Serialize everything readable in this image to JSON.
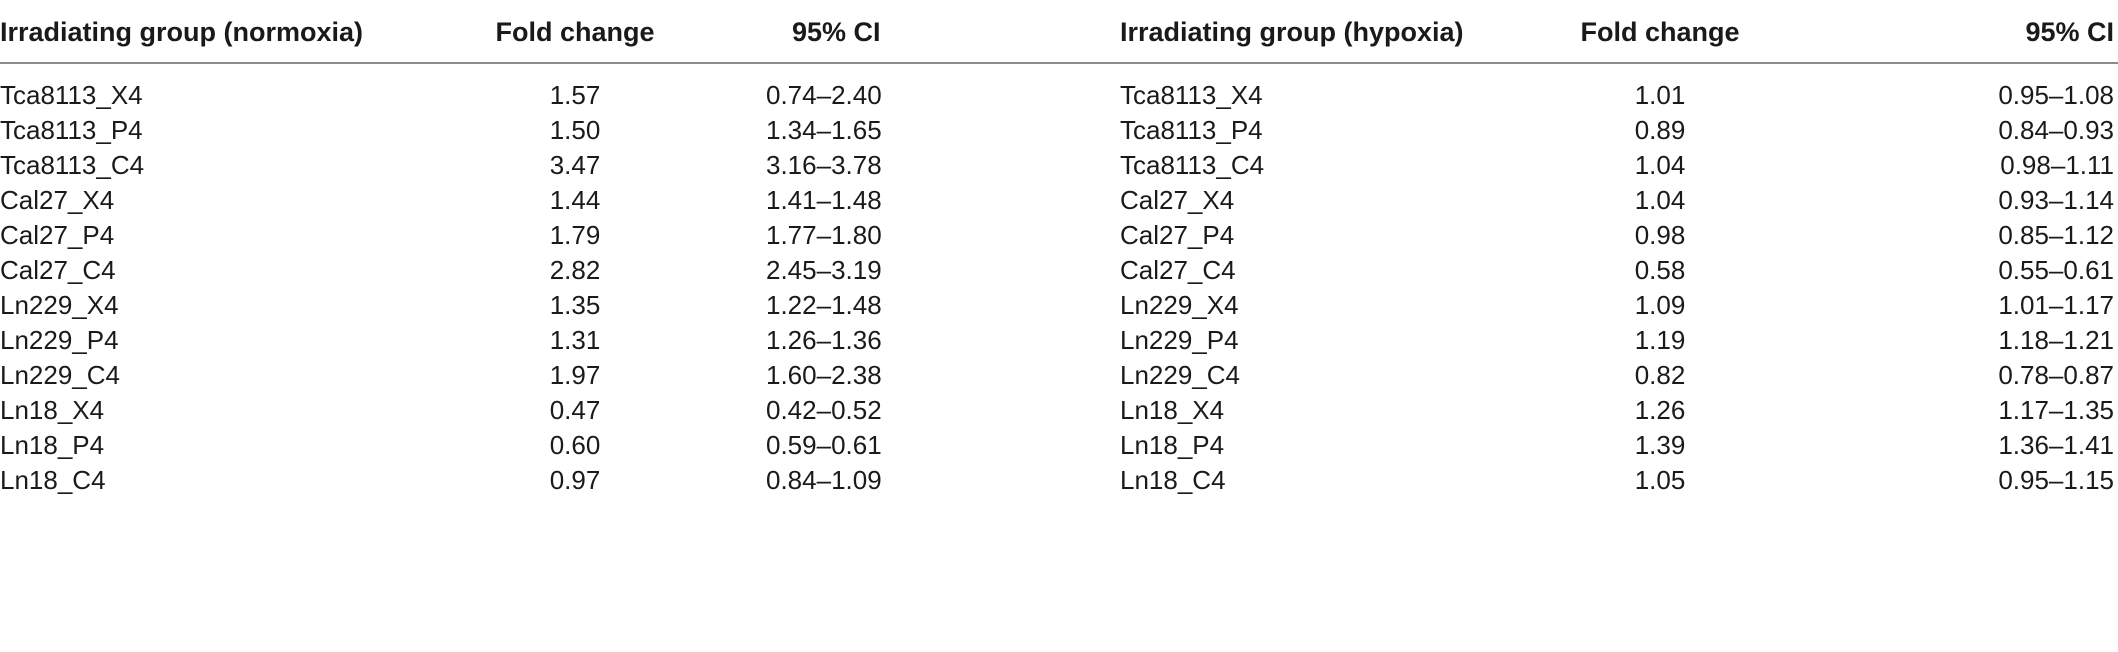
{
  "table": {
    "headers": {
      "normoxia_group": "Irradiating group (normoxia)",
      "normoxia_fold_change": "Fold change",
      "normoxia_ci": "95% CI",
      "hypoxia_group": "Irradiating group (hypoxia)",
      "hypoxia_fold_change": "Fold change",
      "hypoxia_ci": "95% CI"
    },
    "rows": [
      {
        "n_group": "Tca8113_X4",
        "n_fc": "1.57",
        "n_ci": "0.74–2.40",
        "h_group": "Tca8113_X4",
        "h_fc": "1.01",
        "h_ci": "0.95–1.08"
      },
      {
        "n_group": "Tca8113_P4",
        "n_fc": "1.50",
        "n_ci": "1.34–1.65",
        "h_group": "Tca8113_P4",
        "h_fc": "0.89",
        "h_ci": "0.84–0.93"
      },
      {
        "n_group": "Tca8113_C4",
        "n_fc": "3.47",
        "n_ci": "3.16–3.78",
        "h_group": "Tca8113_C4",
        "h_fc": "1.04",
        "h_ci": "0.98–1.11"
      },
      {
        "n_group": "Cal27_X4",
        "n_fc": "1.44",
        "n_ci": "1.41–1.48",
        "h_group": "Cal27_X4",
        "h_fc": "1.04",
        "h_ci": "0.93–1.14"
      },
      {
        "n_group": "Cal27_P4",
        "n_fc": "1.79",
        "n_ci": "1.77–1.80",
        "h_group": "Cal27_P4",
        "h_fc": "0.98",
        "h_ci": "0.85–1.12"
      },
      {
        "n_group": "Cal27_C4",
        "n_fc": "2.82",
        "n_ci": "2.45–3.19",
        "h_group": "Cal27_C4",
        "h_fc": "0.58",
        "h_ci": "0.55–0.61"
      },
      {
        "n_group": "Ln229_X4",
        "n_fc": "1.35",
        "n_ci": "1.22–1.48",
        "h_group": "Ln229_X4",
        "h_fc": "1.09",
        "h_ci": "1.01–1.17"
      },
      {
        "n_group": "Ln229_P4",
        "n_fc": "1.31",
        "n_ci": "1.26–1.36",
        "h_group": "Ln229_P4",
        "h_fc": "1.19",
        "h_ci": "1.18–1.21"
      },
      {
        "n_group": "Ln229_C4",
        "n_fc": "1.97",
        "n_ci": "1.60–2.38",
        "h_group": "Ln229_C4",
        "h_fc": "0.82",
        "h_ci": "0.78–0.87"
      },
      {
        "n_group": "Ln18_X4",
        "n_fc": "0.47",
        "n_ci": "0.42–0.52",
        "h_group": "Ln18_X4",
        "h_fc": "1.26",
        "h_ci": "1.17–1.35"
      },
      {
        "n_group": "Ln18_P4",
        "n_fc": "0.60",
        "n_ci": "0.59–0.61",
        "h_group": "Ln18_P4",
        "h_fc": "1.39",
        "h_ci": "1.36–1.41"
      },
      {
        "n_group": "Ln18_C4",
        "n_fc": "0.97",
        "n_ci": "0.84–1.09",
        "h_group": "Ln18_C4",
        "h_fc": "1.05",
        "h_ci": "0.95–1.15"
      }
    ]
  }
}
